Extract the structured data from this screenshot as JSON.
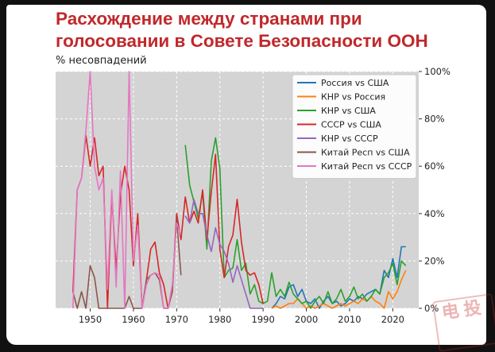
{
  "title_line1": "Расхождение между странами при",
  "title_line2": "голосовании в Совете Безопасности ООН",
  "y_unit_label": "% несовпадений",
  "watermark_text": "电投",
  "chart_data": {
    "type": "line",
    "xlim": [
      1942,
      2026
    ],
    "ylim": [
      0,
      100
    ],
    "x_ticks": [
      1950,
      1960,
      1970,
      1980,
      1990,
      2000,
      2010,
      2020
    ],
    "y_ticks": [
      0,
      20,
      40,
      60,
      80,
      100
    ],
    "y_tick_suffix": "%",
    "y_axis_side": "right",
    "grid": true,
    "background": "#d4d4d4",
    "legend_position": "top-right",
    "series": [
      {
        "name": "Россия vs США",
        "color": "#1f77b4",
        "x": [
          1992,
          1993,
          1994,
          1995,
          1996,
          1997,
          1998,
          1999,
          2000,
          2001,
          2002,
          2003,
          2004,
          2005,
          2006,
          2007,
          2008,
          2009,
          2010,
          2011,
          2012,
          2013,
          2014,
          2015,
          2016,
          2017,
          2018,
          2019,
          2020,
          2021,
          2022,
          2023
        ],
        "y": [
          0,
          2,
          5,
          4,
          9,
          10,
          5,
          8,
          3,
          2,
          4,
          0,
          3,
          5,
          2,
          3,
          1,
          2,
          4,
          3,
          5,
          4,
          6,
          7,
          8,
          6,
          16,
          13,
          21,
          13,
          26,
          26
        ]
      },
      {
        "name": "КНР vs Россия",
        "color": "#ff7f0e",
        "x": [
          1992,
          1993,
          1994,
          1995,
          1996,
          1997,
          1998,
          1999,
          2000,
          2001,
          2002,
          2003,
          2004,
          2005,
          2006,
          2007,
          2008,
          2009,
          2010,
          2011,
          2012,
          2013,
          2014,
          2015,
          2016,
          2017,
          2018,
          2019,
          2020,
          2021,
          2022,
          2023
        ],
        "y": [
          0,
          1,
          0,
          1,
          2,
          2,
          4,
          2,
          0,
          1,
          0,
          1,
          2,
          1,
          0,
          1,
          2,
          1,
          2,
          3,
          2,
          4,
          3,
          5,
          3,
          2,
          0,
          7,
          4,
          7,
          12,
          16
        ]
      },
      {
        "name": "КНР vs США",
        "color": "#2ca02c",
        "x": [
          1972,
          1973,
          1974,
          1975,
          1976,
          1977,
          1978,
          1979,
          1980,
          1981,
          1982,
          1983,
          1984,
          1985,
          1986,
          1987,
          1988,
          1989,
          1990,
          1991,
          1992,
          1993,
          1994,
          1995,
          1996,
          1997,
          1998,
          1999,
          2000,
          2001,
          2002,
          2003,
          2004,
          2005,
          2006,
          2007,
          2008,
          2009,
          2010,
          2011,
          2012,
          2013,
          2014,
          2015,
          2016,
          2017,
          2018,
          2019,
          2020,
          2021,
          2022,
          2023
        ],
        "y": [
          69,
          52,
          45,
          38,
          49,
          25,
          62,
          72,
          59,
          13,
          16,
          17,
          29,
          16,
          19,
          6,
          10,
          3,
          2,
          3,
          15,
          5,
          8,
          5,
          11,
          6,
          4,
          2,
          3,
          0,
          3,
          5,
          2,
          7,
          2,
          4,
          8,
          3,
          5,
          9,
          4,
          6,
          3,
          5,
          8,
          6,
          13,
          15,
          19,
          10,
          20,
          18
        ]
      },
      {
        "name": "СССР vs США",
        "color": "#d62728",
        "x": [
          1946,
          1947,
          1948,
          1949,
          1950,
          1951,
          1952,
          1953,
          1954,
          1955,
          1956,
          1957,
          1958,
          1959,
          1960,
          1961,
          1962,
          1963,
          1964,
          1965,
          1966,
          1967,
          1968,
          1969,
          1970,
          1971,
          1972,
          1973,
          1974,
          1975,
          1976,
          1977,
          1978,
          1979,
          1980,
          1981,
          1982,
          1983,
          1984,
          1985,
          1986,
          1987,
          1988,
          1989,
          1990
        ],
        "y": [
          7,
          50,
          55,
          73,
          60,
          72,
          56,
          60,
          0,
          48,
          16,
          48,
          60,
          50,
          18,
          40,
          0,
          12,
          25,
          28,
          15,
          10,
          0,
          7,
          40,
          29,
          47,
          36,
          41,
          36,
          50,
          29,
          49,
          65,
          25,
          13,
          26,
          31,
          46,
          28,
          16,
          14,
          15,
          10,
          2
        ]
      },
      {
        "name": "КНР vs СССР",
        "color": "#9467bd",
        "x": [
          1972,
          1973,
          1974,
          1975,
          1976,
          1977,
          1978,
          1979,
          1980,
          1981,
          1982,
          1983,
          1984,
          1985,
          1986,
          1987,
          1988,
          1989,
          1990
        ],
        "y": [
          39,
          36,
          46,
          40,
          40,
          31,
          24,
          34,
          27,
          24,
          19,
          11,
          18,
          12,
          6,
          0,
          0,
          0,
          0
        ]
      },
      {
        "name": "Китай Респ vs США",
        "color": "#8c564b",
        "x": [
          1946,
          1947,
          1948,
          1949,
          1950,
          1951,
          1952,
          1953,
          1954,
          1955,
          1956,
          1957,
          1958,
          1959,
          1960,
          1961,
          1962,
          1963,
          1964,
          1965,
          1966,
          1967,
          1968,
          1969,
          1970,
          1971
        ],
        "y": [
          7,
          0,
          7,
          0,
          18,
          13,
          0,
          0,
          0,
          0,
          0,
          0,
          0,
          5,
          0,
          0,
          0,
          12,
          14,
          15,
          12,
          0,
          0,
          8,
          38,
          14
        ]
      },
      {
        "name": "Китай Респ vs СССР",
        "color": "#e377c2",
        "x": [
          1946,
          1947,
          1948,
          1949,
          1950,
          1951,
          1952,
          1953,
          1954,
          1955,
          1956,
          1957,
          1958,
          1959,
          1960,
          1961,
          1962,
          1963,
          1964,
          1965,
          1966,
          1967,
          1968,
          1969,
          1970,
          1971
        ],
        "y": [
          0,
          50,
          55,
          75,
          100,
          60,
          50,
          55,
          8,
          50,
          9,
          58,
          0,
          100,
          20,
          35,
          0,
          10,
          14,
          15,
          14,
          0,
          0,
          10,
          36,
          31
        ]
      }
    ]
  }
}
